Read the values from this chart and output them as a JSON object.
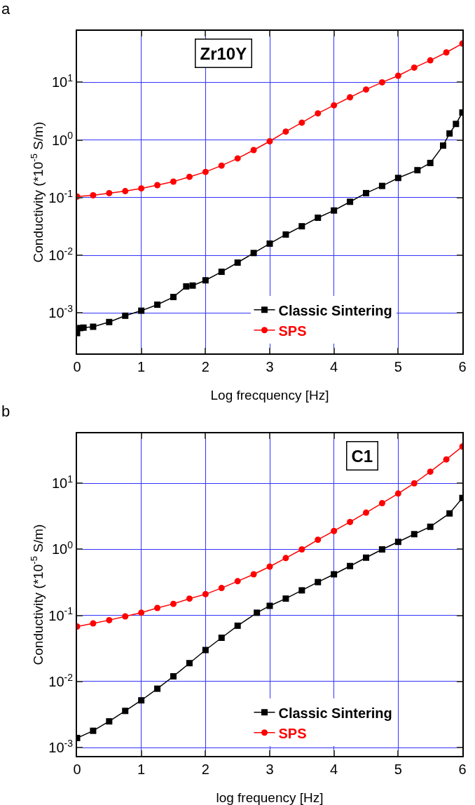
{
  "chart_data": [
    {
      "type": "line",
      "title": "a",
      "annotations": [
        "Zr10Y"
      ],
      "xlabel": "Log frecquency [Hz]",
      "ylabel": "Conductivity (*10$^{-5}$ S/m)",
      "log": "y",
      "grid": true,
      "legend": "bottom right",
      "line_style": "solid",
      "xlim": [
        0,
        6
      ],
      "xticks": [
        0,
        1,
        2,
        3,
        4,
        5,
        6
      ],
      "ylim": [
        0.0002,
        78
      ],
      "yticks": [
        {
          "value": 0.001,
          "label": "10$^{-3}$"
        },
        {
          "value": 0.01,
          "label": "10$^{-2}$"
        },
        {
          "value": 0.1,
          "label": "10$^{-1}$"
        },
        {
          "value": 1,
          "label": "10$^{0}$"
        },
        {
          "value": 10,
          "label": "10$^{1}$"
        }
      ],
      "series": [
        {
          "name": "Classic Sintering",
          "color": "#000000",
          "marker": "square",
          "x": [
            0,
            0.05,
            0.1,
            0.25,
            0.5,
            0.75,
            1,
            1.25,
            1.5,
            1.7,
            1.8,
            2,
            2.25,
            2.5,
            2.75,
            3,
            3.25,
            3.5,
            3.75,
            4,
            4.25,
            4.5,
            4.75,
            5,
            5.3,
            5.5,
            5.7,
            5.8,
            5.9,
            6
          ],
          "values": [
            0.00045,
            0.00055,
            0.00056,
            0.00058,
            0.0007,
            0.0009,
            0.0011,
            0.0014,
            0.0019,
            0.0029,
            0.003,
            0.0037,
            0.0052,
            0.0075,
            0.011,
            0.016,
            0.023,
            0.032,
            0.045,
            0.06,
            0.085,
            0.12,
            0.16,
            0.22,
            0.3,
            0.4,
            0.8,
            1.3,
            1.9,
            3.0
          ]
        },
        {
          "name": "SPS",
          "color": "#ff0000",
          "marker": "circle",
          "x": [
            0,
            0.25,
            0.5,
            0.75,
            1,
            1.25,
            1.5,
            1.75,
            2,
            2.25,
            2.5,
            2.75,
            3,
            3.25,
            3.5,
            3.75,
            4,
            4.25,
            4.5,
            4.75,
            5,
            5.25,
            5.5,
            5.75,
            6
          ],
          "values": [
            0.105,
            0.11,
            0.12,
            0.13,
            0.145,
            0.165,
            0.19,
            0.23,
            0.28,
            0.36,
            0.48,
            0.67,
            0.95,
            1.4,
            2.0,
            2.9,
            4.0,
            5.5,
            7.5,
            10,
            13,
            18,
            24,
            33,
            47
          ]
        }
      ]
    },
    {
      "type": "line",
      "title": "b",
      "annotations": [
        "C1"
      ],
      "xlabel": "log frequency [Hz]",
      "ylabel": "Conductivity (*10$^{-5}$ S/m)",
      "log": "y",
      "grid": true,
      "legend": "bottom right",
      "line_style": "solid",
      "xlim": [
        0,
        6
      ],
      "xticks": [
        0,
        1,
        2,
        3,
        4,
        5,
        6
      ],
      "ylim": [
        0.00075,
        57
      ],
      "yticks": [
        {
          "value": 0.001,
          "label": "10$^{-3}$"
        },
        {
          "value": 0.01,
          "label": "10$^{-2}$"
        },
        {
          "value": 0.1,
          "label": "10$^{-1}$"
        },
        {
          "value": 1,
          "label": "10$^{0}$"
        },
        {
          "value": 10,
          "label": "10$^{1}$"
        }
      ],
      "series": [
        {
          "name": "Classic Sintering",
          "color": "#000000",
          "marker": "square",
          "x": [
            0,
            0.25,
            0.5,
            0.75,
            1,
            1.25,
            1.5,
            1.75,
            2,
            2.25,
            2.5,
            2.8,
            3,
            3.25,
            3.5,
            3.75,
            4,
            4.25,
            4.5,
            4.75,
            5,
            5.25,
            5.5,
            5.8,
            6
          ],
          "values": [
            0.0014,
            0.0018,
            0.0025,
            0.0036,
            0.0052,
            0.0078,
            0.012,
            0.019,
            0.03,
            0.046,
            0.07,
            0.11,
            0.14,
            0.18,
            0.24,
            0.32,
            0.42,
            0.56,
            0.75,
            1.0,
            1.3,
            1.7,
            2.2,
            3.5,
            6.0
          ]
        },
        {
          "name": "SPS",
          "color": "#ff0000",
          "marker": "circle",
          "x": [
            0,
            0.25,
            0.5,
            0.75,
            1,
            1.25,
            1.5,
            1.75,
            2,
            2.25,
            2.5,
            2.75,
            3,
            3.25,
            3.5,
            3.75,
            4,
            4.25,
            4.5,
            4.75,
            5,
            5.25,
            5.5,
            5.75,
            6
          ],
          "values": [
            0.068,
            0.076,
            0.085,
            0.097,
            0.11,
            0.13,
            0.15,
            0.18,
            0.21,
            0.26,
            0.33,
            0.42,
            0.55,
            0.74,
            1.0,
            1.4,
            1.9,
            2.6,
            3.6,
            5.0,
            7.0,
            10,
            15,
            23,
            36
          ]
        }
      ]
    }
  ]
}
